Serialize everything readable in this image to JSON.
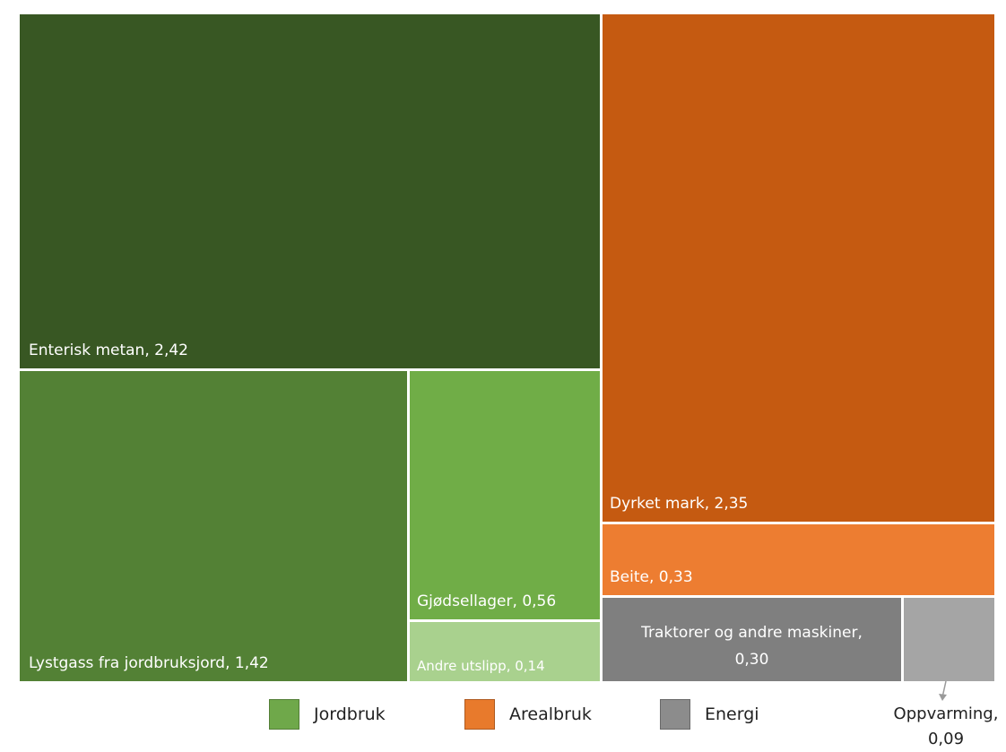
{
  "chart_data": {
    "type": "treemap",
    "title": "",
    "decimal_separator": ",",
    "groups": [
      {
        "name": "Jordbruk",
        "color": "#6fa84a"
      },
      {
        "name": "Arealbruk",
        "color": "#e87a2c"
      },
      {
        "name": "Energi",
        "color": "#8c8c8c"
      }
    ],
    "items": [
      {
        "label": "Enterisk metan, 2,42",
        "value": 2.42,
        "group": "Jordbruk",
        "color": "#385723"
      },
      {
        "label": "Lystgass fra jordbruksjord, 1,42",
        "value": 1.42,
        "group": "Jordbruk",
        "color": "#538135"
      },
      {
        "label": "Gjødsellager, 0,56",
        "value": 0.56,
        "group": "Jordbruk",
        "color": "#70ad47"
      },
      {
        "label": "Andre utslipp, 0,14",
        "value": 0.14,
        "group": "Jordbruk",
        "color": "#a9d18e"
      },
      {
        "label": "Dyrket mark, 2,35",
        "value": 2.35,
        "group": "Arealbruk",
        "color": "#c55a11"
      },
      {
        "label": "Beite, 0,33",
        "value": 0.33,
        "group": "Arealbruk",
        "color": "#ed7d31"
      },
      {
        "label": "Traktorer og andre maskiner,\n0,30",
        "value": 0.3,
        "group": "Energi",
        "color": "#7f7f7f"
      },
      {
        "label": "Oppvarming,\n0,09",
        "value": 0.09,
        "group": "Energi",
        "color": "#a5a5a5",
        "callout": true
      }
    ]
  },
  "legend": [
    {
      "label": "Jordbruk",
      "color": "#6fa84a"
    },
    {
      "label": "Arealbruk",
      "color": "#e87a2c"
    },
    {
      "label": "Energi",
      "color": "#8c8c8c"
    }
  ]
}
